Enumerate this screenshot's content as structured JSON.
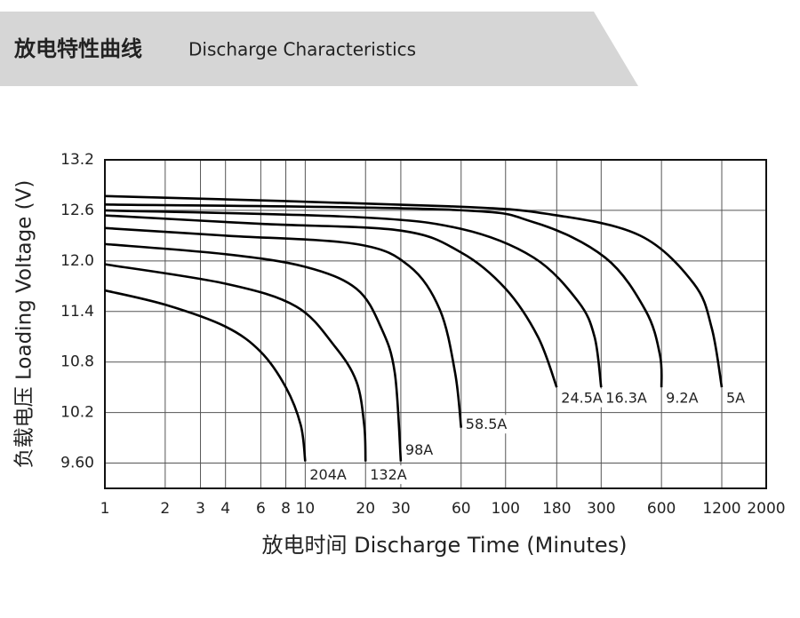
{
  "header": {
    "title_cn": "放电特性曲线",
    "title_en": "Discharge Characteristics"
  },
  "chart_data": {
    "type": "line",
    "x_label": "放电时间 Discharge Time (Minutes)",
    "y_label": "负载电压 Loading Voltage (V)",
    "xlog": true,
    "grid": true,
    "xlim": [
      1,
      2000
    ],
    "ylim": [
      9.3,
      13.2
    ],
    "xticks": [
      1,
      2,
      3,
      4,
      6,
      8,
      10,
      20,
      30,
      60,
      100,
      180,
      300,
      600,
      1200,
      2000
    ],
    "yticks": [
      {
        "value": 9.6,
        "label": "9.60"
      },
      10.2,
      10.8,
      11.4,
      {
        "value": 12,
        "label": "12.0"
      },
      12.6,
      13.2
    ],
    "series": [
      {
        "name": "204A",
        "color": "#000000",
        "x": [
          1,
          2,
          4,
          6,
          8,
          9.5,
          10
        ],
        "values": [
          11.65,
          11.48,
          11.22,
          10.92,
          10.5,
          10.05,
          9.62
        ]
      },
      {
        "name": "132A",
        "color": "#000000",
        "x": [
          1,
          4,
          9,
          14,
          18,
          19.7,
          20
        ],
        "values": [
          11.96,
          11.73,
          11.46,
          10.99,
          10.57,
          10.05,
          9.62
        ]
      },
      {
        "name": "98A",
        "color": "#000000",
        "x": [
          1,
          4,
          10,
          18,
          24,
          28,
          30
        ],
        "values": [
          12.2,
          12.08,
          11.93,
          11.67,
          11.2,
          10.67,
          9.62
        ]
      },
      {
        "name": "58.5A",
        "color": "#000000",
        "x": [
          1,
          4,
          18,
          33,
          47,
          56,
          60
        ],
        "values": [
          12.39,
          12.3,
          12.2,
          11.94,
          11.42,
          10.67,
          10.02
        ]
      },
      {
        "name": "24.5A",
        "color": "#000000",
        "x": [
          1,
          6,
          30,
          60,
          100,
          145,
          180
        ],
        "values": [
          12.54,
          12.44,
          12.36,
          12.1,
          11.67,
          11.1,
          10.5
        ]
      },
      {
        "name": "16.3A",
        "color": "#000000",
        "x": [
          1,
          18,
          60,
          138,
          230,
          278,
          300
        ],
        "values": [
          12.6,
          12.52,
          12.38,
          12.04,
          11.52,
          11.1,
          10.5
        ]
      },
      {
        "name": "9.2A",
        "color": "#000000",
        "x": [
          1,
          50,
          138,
          314,
          500,
          590,
          600
        ],
        "values": [
          12.67,
          12.61,
          12.46,
          12.04,
          11.41,
          10.88,
          10.5
        ]
      },
      {
        "name": "5A",
        "color": "#000000",
        "x": [
          1,
          50,
          170,
          470,
          870,
          1070,
          1200
        ],
        "values": [
          12.77,
          12.65,
          12.55,
          12.3,
          11.73,
          11.2,
          10.5
        ]
      }
    ]
  }
}
